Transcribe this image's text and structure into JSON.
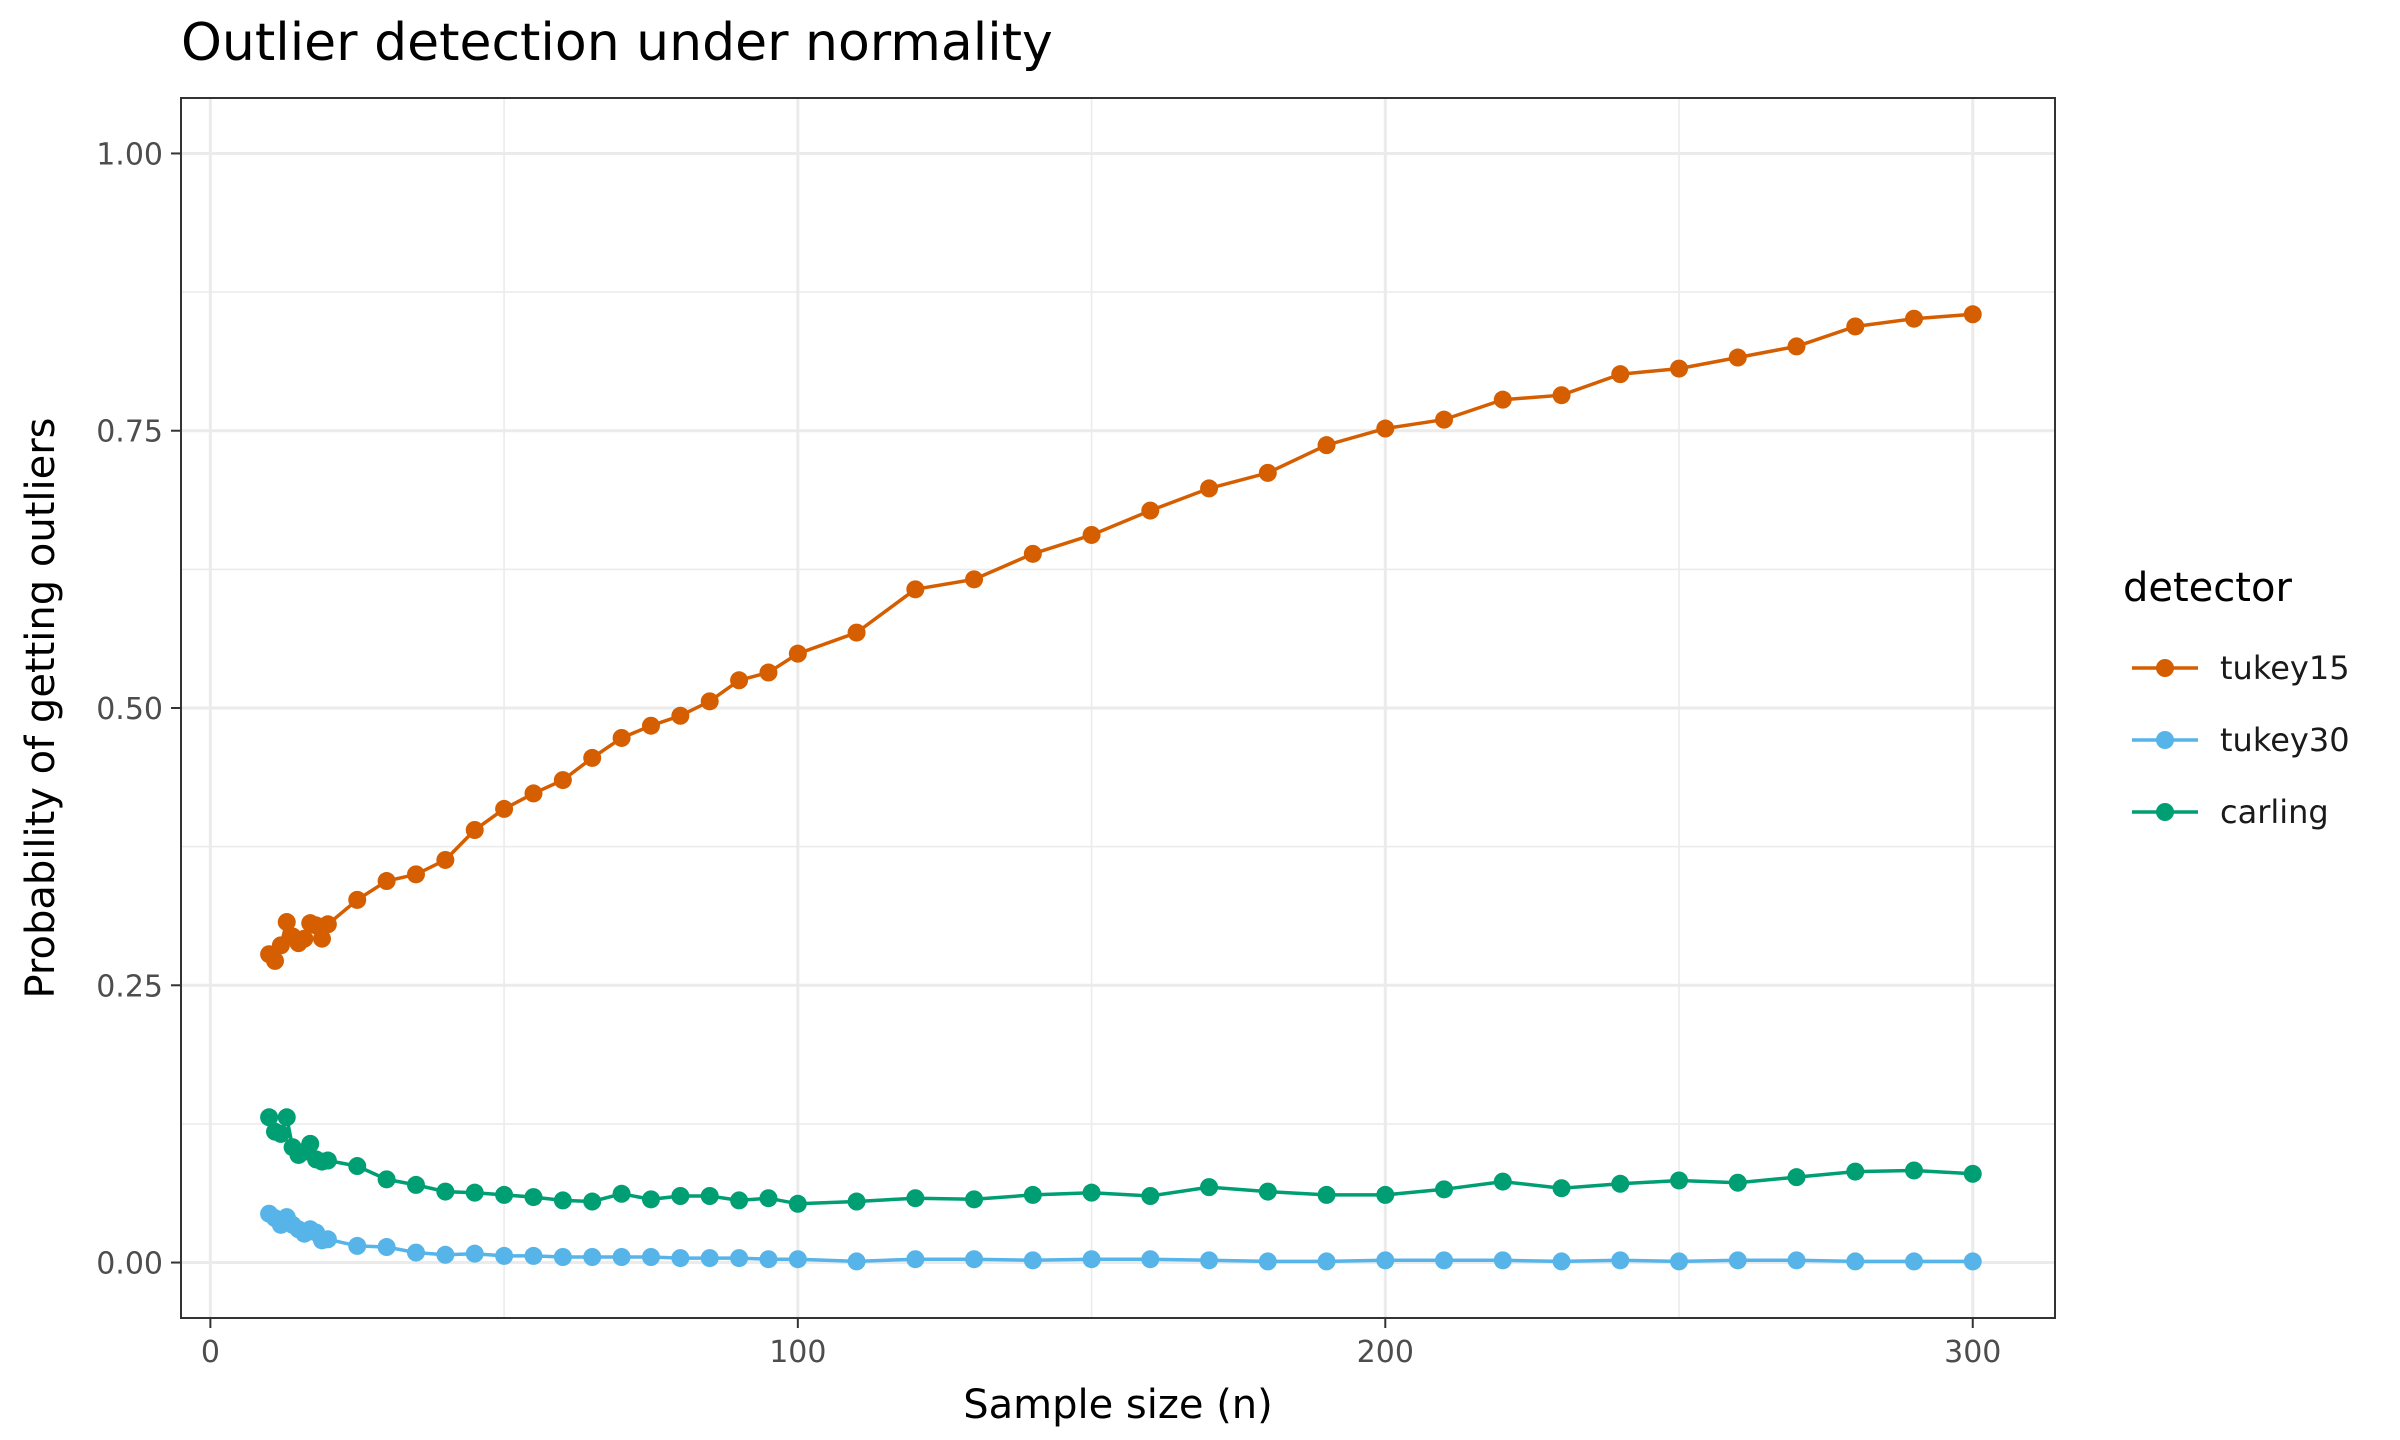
{
  "chart_data": {
    "type": "line",
    "title": "Outlier detection under normality",
    "xlabel": "Sample size (n)",
    "ylabel": "Probability of getting outliers",
    "xlim": [
      -5,
      314
    ],
    "ylim": [
      -0.05,
      1.05
    ],
    "x_ticks": [
      0,
      100,
      200,
      300
    ],
    "x_tick_labels": [
      "0",
      "100",
      "200",
      "300"
    ],
    "y_ticks": [
      0,
      0.25,
      0.5,
      0.75,
      1
    ],
    "y_tick_labels": [
      "0.00",
      "0.25",
      "0.50",
      "0.75",
      "1.00"
    ],
    "grid": true,
    "legend": {
      "title": "detector",
      "position": "right"
    },
    "x": [
      10,
      11,
      12,
      13,
      14,
      15,
      16,
      17,
      18,
      19,
      20,
      25,
      30,
      35,
      40,
      45,
      50,
      55,
      60,
      65,
      70,
      75,
      80,
      85,
      90,
      95,
      100,
      110,
      120,
      130,
      140,
      150,
      160,
      170,
      180,
      190,
      200,
      210,
      220,
      230,
      240,
      250,
      260,
      270,
      280,
      290,
      300
    ],
    "series": [
      {
        "name": "tukey15",
        "color": "#D55E00",
        "values": [
          0.278,
          0.272,
          0.286,
          0.307,
          0.294,
          0.288,
          0.292,
          0.306,
          0.304,
          0.292,
          0.305,
          0.327,
          0.344,
          0.35,
          0.363,
          0.39,
          0.409,
          0.423,
          0.435,
          0.455,
          0.473,
          0.484,
          0.493,
          0.506,
          0.525,
          0.532,
          0.549,
          0.568,
          0.607,
          0.616,
          0.639,
          0.656,
          0.678,
          0.698,
          0.712,
          0.737,
          0.752,
          0.76,
          0.778,
          0.782,
          0.801,
          0.806,
          0.816,
          0.826,
          0.844,
          0.851,
          0.855
        ]
      },
      {
        "name": "tukey30",
        "color": "#56B4E9",
        "values": [
          0.044,
          0.04,
          0.034,
          0.041,
          0.034,
          0.03,
          0.026,
          0.03,
          0.027,
          0.02,
          0.021,
          0.015,
          0.014,
          0.009,
          0.007,
          0.008,
          0.006,
          0.006,
          0.005,
          0.005,
          0.005,
          0.005,
          0.004,
          0.004,
          0.004,
          0.003,
          0.003,
          0.001,
          0.003,
          0.003,
          0.002,
          0.003,
          0.003,
          0.002,
          0.001,
          0.001,
          0.002,
          0.002,
          0.002,
          0.001,
          0.002,
          0.001,
          0.002,
          0.002,
          0.001,
          0.001,
          0.001
        ]
      },
      {
        "name": "carling",
        "color": "#009E73",
        "values": [
          0.131,
          0.118,
          0.116,
          0.131,
          0.104,
          0.097,
          0.1,
          0.107,
          0.093,
          0.091,
          0.092,
          0.087,
          0.075,
          0.07,
          0.064,
          0.063,
          0.061,
          0.059,
          0.056,
          0.055,
          0.062,
          0.057,
          0.06,
          0.06,
          0.056,
          0.058,
          0.053,
          0.055,
          0.058,
          0.057,
          0.061,
          0.063,
          0.06,
          0.068,
          0.064,
          0.061,
          0.061,
          0.066,
          0.073,
          0.067,
          0.071,
          0.074,
          0.072,
          0.077,
          0.082,
          0.083,
          0.08
        ]
      }
    ]
  }
}
